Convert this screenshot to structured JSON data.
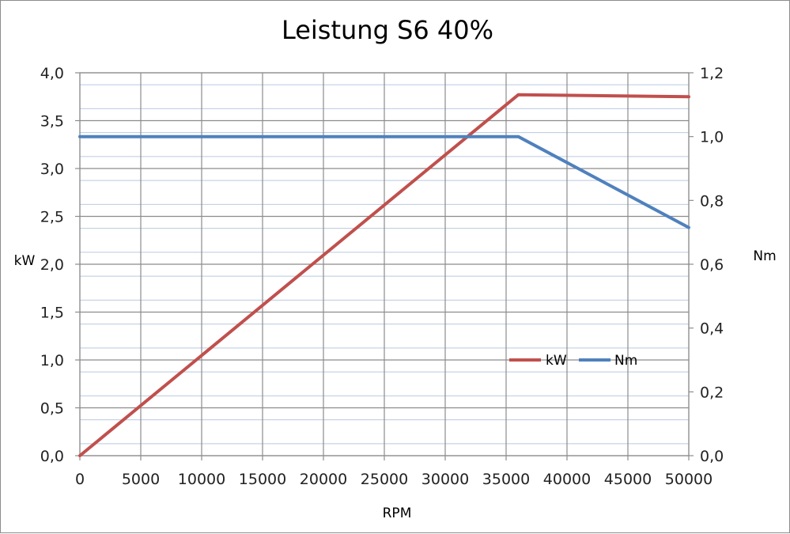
{
  "chart_data": {
    "type": "line",
    "title": "Leistung S6 40%",
    "xlabel": "RPM",
    "ylabel_left": "kW",
    "ylabel_right": "Nm",
    "x_ticks": [
      "0",
      "5000",
      "10000",
      "15000",
      "20000",
      "25000",
      "30000",
      "35000",
      "40000",
      "45000",
      "50000"
    ],
    "y_left_ticks": [
      "0,0",
      "0,5",
      "1,0",
      "1,5",
      "2,0",
      "2,5",
      "3,0",
      "3,5",
      "4,0"
    ],
    "y_right_ticks": [
      "0,0",
      "0,2",
      "0,4",
      "0,6",
      "0,8",
      "1,0",
      "1,2"
    ],
    "xlim": [
      0,
      50000
    ],
    "ylim_left": [
      0,
      4.0
    ],
    "ylim_right": [
      0,
      1.2
    ],
    "grid": true,
    "legend_position": "right-middle",
    "series": [
      {
        "name": "kW",
        "axis": "left",
        "color": "#c0504d",
        "points": [
          [
            0,
            0.0
          ],
          [
            36000,
            3.77
          ],
          [
            50000,
            3.75
          ]
        ]
      },
      {
        "name": "Nm",
        "axis": "right",
        "color": "#4f81bd",
        "points": [
          [
            0,
            1.0
          ],
          [
            36000,
            1.0
          ],
          [
            50000,
            0.715
          ]
        ]
      }
    ]
  }
}
